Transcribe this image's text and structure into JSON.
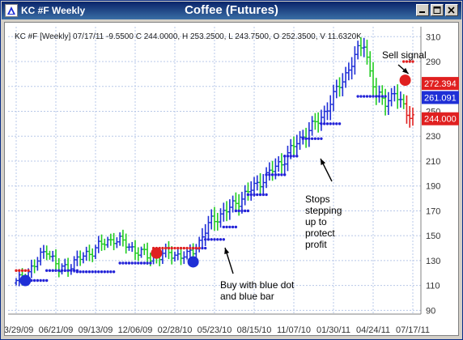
{
  "window": {
    "title": "KC #F Weekly",
    "center_title": "Coffee (Futures)",
    "buttons": [
      "minimize",
      "maximize",
      "close"
    ]
  },
  "chart_data": {
    "type": "bar",
    "subtype": "OHLC price bars with stop-dot overlay",
    "title": "Coffee (Futures)",
    "info_line": "KC #F [Weekly] 07/17/11  -9.5500 C 244.0000, H 253.2500, L 243.7500, O 252.3500, V 11.6320K",
    "ylim": [
      87,
      318
    ],
    "y_ticks": [
      90,
      110,
      130,
      150,
      170,
      190,
      210,
      230,
      250,
      270,
      290,
      310
    ],
    "x_ticks": [
      "03/29/09",
      "06/21/09",
      "09/13/09",
      "12/06/09",
      "02/28/10",
      "05/23/10",
      "08/15/10",
      "11/07/10",
      "01/30/11",
      "04/24/11",
      "07/17/11"
    ],
    "grid": true,
    "colors": {
      "bullish_bar": "#1f2fd6",
      "bearish_bar": "#22cc22",
      "sell_bar": "#e02020",
      "buy_stop_dot": "#2323d8",
      "sell_stop_dot": "#e02020",
      "grid": "#b8c8e8",
      "tag_close": "#e02020",
      "tag_blue": "#1f2fd6",
      "tag_price": "#e02020"
    },
    "price_tags": [
      {
        "value": 272.394,
        "label": "272.394",
        "color": "#e02020"
      },
      {
        "value": 261.091,
        "label": "261.091",
        "color": "#1f2fd6"
      },
      {
        "value": 244.0,
        "label": "244.000",
        "color": "#e02020"
      }
    ],
    "anchors": [
      {
        "x": 0,
        "y": 112
      },
      {
        "x": 6,
        "y": 126
      },
      {
        "x": 10,
        "y": 140
      },
      {
        "x": 14,
        "y": 122
      },
      {
        "x": 20,
        "y": 130
      },
      {
        "x": 26,
        "y": 140
      },
      {
        "x": 32,
        "y": 148
      },
      {
        "x": 38,
        "y": 140
      },
      {
        "x": 44,
        "y": 132
      },
      {
        "x": 50,
        "y": 136
      },
      {
        "x": 56,
        "y": 133
      },
      {
        "x": 60,
        "y": 145
      },
      {
        "x": 64,
        "y": 162
      },
      {
        "x": 70,
        "y": 172
      },
      {
        "x": 76,
        "y": 185
      },
      {
        "x": 82,
        "y": 198
      },
      {
        "x": 88,
        "y": 212
      },
      {
        "x": 92,
        "y": 225
      },
      {
        "x": 96,
        "y": 235
      },
      {
        "x": 100,
        "y": 245
      },
      {
        "x": 104,
        "y": 262
      },
      {
        "x": 108,
        "y": 280
      },
      {
        "x": 112,
        "y": 298
      },
      {
        "x": 114,
        "y": 305
      },
      {
        "x": 116,
        "y": 282
      },
      {
        "x": 118,
        "y": 262
      },
      {
        "x": 121,
        "y": 258
      },
      {
        "x": 124,
        "y": 265
      },
      {
        "x": 126,
        "y": 256
      },
      {
        "x": 128,
        "y": 250
      },
      {
        "x": 130,
        "y": 246
      }
    ],
    "bar_count": 131,
    "buy_stop_dots": [
      {
        "from": 3,
        "to": 10,
        "y": 114
      },
      {
        "from": 10,
        "to": 20,
        "y": 122
      },
      {
        "from": 20,
        "to": 32,
        "y": 121
      },
      {
        "from": 34,
        "to": 44,
        "y": 128
      },
      {
        "from": 58,
        "to": 62,
        "y": 140
      },
      {
        "from": 62,
        "to": 68,
        "y": 147
      },
      {
        "from": 68,
        "to": 72,
        "y": 157
      },
      {
        "from": 72,
        "to": 76,
        "y": 170
      },
      {
        "from": 76,
        "to": 82,
        "y": 183
      },
      {
        "from": 82,
        "to": 88,
        "y": 199
      },
      {
        "from": 88,
        "to": 92,
        "y": 214
      },
      {
        "from": 94,
        "to": 100,
        "y": 228
      },
      {
        "from": 100,
        "to": 106,
        "y": 240
      },
      {
        "from": 112,
        "to": 121,
        "y": 262
      }
    ],
    "sell_stop_dots": [
      {
        "from": 0,
        "to": 4,
        "y": 122
      },
      {
        "from": 45,
        "to": 60,
        "y": 140
      },
      {
        "from": 127,
        "to": 130,
        "y": 290
      }
    ],
    "signals": [
      {
        "type": "buy",
        "x": 3,
        "y": 114,
        "color": "#1f2fd6"
      },
      {
        "type": "setup",
        "x": 46,
        "y": 136,
        "color": "#e02020"
      },
      {
        "type": "buy",
        "x": 58,
        "y": 129,
        "color": "#1f2fd6"
      },
      {
        "type": "sell",
        "x": 127.5,
        "y": 275,
        "color": "#e02020"
      }
    ],
    "annotations": [
      {
        "text": "Sell signal",
        "lines": [
          "Sell signal"
        ],
        "target": "sell"
      },
      {
        "text": "Stops stepping up to protect profit",
        "lines": [
          "Stops",
          "stepping",
          "up to",
          "protect",
          "profit"
        ],
        "target": "stops"
      },
      {
        "text": "Buy with blue dot and blue bar",
        "lines": [
          "Buy with blue dot",
          "and blue bar"
        ],
        "target": "buy"
      }
    ]
  }
}
